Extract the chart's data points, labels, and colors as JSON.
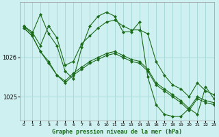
{
  "title": "Graphe pression niveau de la mer (hPa)",
  "background_color": "#cff0f0",
  "grid_color": "#a8d8d8",
  "line_color": "#1a6b1a",
  "marker_color": "#1a6b1a",
  "xlim": [
    -0.5,
    23
  ],
  "ylim": [
    1024.4,
    1027.4
  ],
  "yticks": [
    1025,
    1026
  ],
  "ytick_labels": [
    "1025",
    "1026"
  ],
  "xticks": [
    0,
    1,
    2,
    3,
    4,
    5,
    6,
    7,
    8,
    9,
    10,
    11,
    12,
    13,
    14,
    15,
    16,
    17,
    18,
    19,
    20,
    21,
    22,
    23
  ],
  "series": [
    [
      1026.8,
      1026.65,
      1026.3,
      1026.8,
      1026.5,
      1025.8,
      1025.9,
      1026.35,
      1026.55,
      1026.75,
      1026.9,
      1026.95,
      1026.8,
      1026.7,
      1026.7,
      1026.6,
      1025.9,
      1025.55,
      1025.3,
      1025.2,
      1025.0,
      1025.35,
      1025.15,
      1025.05
    ],
    [
      1026.75,
      1026.55,
      1026.15,
      1025.9,
      1025.55,
      1025.4,
      1025.6,
      1025.75,
      1025.9,
      1026.0,
      1026.1,
      1026.15,
      1026.05,
      1025.95,
      1025.9,
      1025.7,
      1025.35,
      1025.2,
      1025.05,
      1024.9,
      1024.7,
      1025.0,
      1024.9,
      1024.85
    ],
    [
      1026.75,
      1026.55,
      1026.15,
      1025.85,
      1025.55,
      1025.35,
      1025.55,
      1025.7,
      1025.85,
      1025.95,
      1026.05,
      1026.1,
      1026.0,
      1025.9,
      1025.85,
      1025.65,
      1025.3,
      1025.15,
      1025.0,
      1024.85,
      1024.65,
      1024.95,
      1024.85,
      1024.8
    ],
    [
      1026.8,
      1026.6,
      1027.1,
      1026.6,
      1026.3,
      1025.65,
      1025.45,
      1026.25,
      1026.8,
      1027.05,
      1027.15,
      1027.05,
      1026.65,
      1026.65,
      1026.9,
      1025.5,
      1024.8,
      1024.55,
      1024.5,
      1024.5,
      1024.7,
      1024.55,
      1025.25,
      1024.95
    ]
  ]
}
